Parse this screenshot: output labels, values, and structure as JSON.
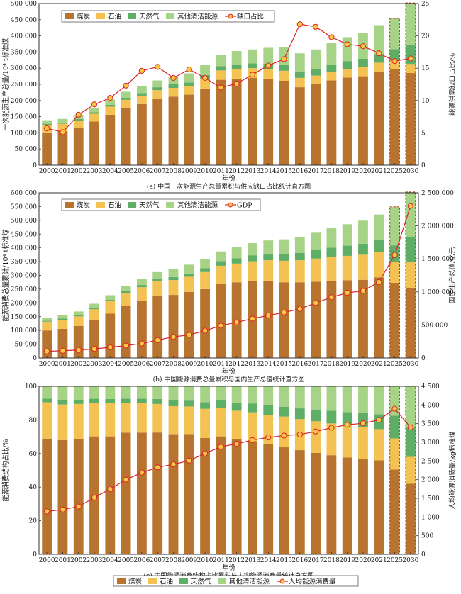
{
  "years": [
    "2000",
    "2001",
    "2002",
    "2003",
    "2004",
    "2005",
    "2006",
    "2007",
    "2008",
    "2009",
    "2010",
    "2011",
    "2012",
    "2013",
    "2014",
    "2015",
    "2016",
    "2017",
    "2018",
    "2019",
    "2020",
    "2021",
    "2025",
    "2030"
  ],
  "colors": {
    "coal": "#b8732f",
    "oil": "#f4c253",
    "gas": "#5fae66",
    "clean": "#a7d387",
    "line": "#d9242b",
    "marker": "#f6c842",
    "proj_border": "#c0392b"
  },
  "chart_data": [
    {
      "type": "bar",
      "title": "(a) 中国一次能源生产总量累积与供应缺口占比统计直方图",
      "xlabel": "年份",
      "ylabel": "一次能源生产总量/10⁴ t标准煤",
      "y2label": "能源供需缺口占比/%",
      "ylim": [
        0,
        500000
      ],
      "y2lim": [
        0,
        25
      ],
      "yticks": [
        "0",
        "50 000",
        "100 000",
        "150 000",
        "200 000",
        "250 000",
        "300 000",
        "350 000",
        "400 000",
        "450 000",
        "500 000"
      ],
      "y2ticks": [
        "0",
        "5",
        "10",
        "15",
        "20",
        "25"
      ],
      "legend": [
        "煤炭",
        "石油",
        "天然气",
        "其他清洁能源",
        "缺口占比"
      ],
      "legend_position": "top-left",
      "series": [
        {
          "name": "煤炭",
          "values": [
            101000,
            105000,
            114000,
            135000,
            156000,
            176000,
            189000,
            205000,
            212000,
            218000,
            237000,
            264000,
            267000,
            270000,
            267000,
            261000,
            241000,
            250000,
            262000,
            271000,
            275000,
            289000,
            298000,
            285000
          ]
        },
        {
          "name": "石油",
          "values": [
            23000,
            23000,
            24000,
            24000,
            25000,
            26000,
            26000,
            27000,
            27000,
            27000,
            29000,
            29000,
            30000,
            30000,
            30000,
            31000,
            29000,
            27000,
            27000,
            27000,
            28000,
            28000,
            28000,
            28000
          ]
        },
        {
          "name": "天然气",
          "values": [
            4000,
            4000,
            5000,
            5000,
            6000,
            7000,
            8000,
            9000,
            11000,
            11000,
            13000,
            13000,
            14000,
            15000,
            17000,
            18000,
            18000,
            20000,
            21000,
            24000,
            26000,
            27000,
            33000,
            60000
          ]
        },
        {
          "name": "其他清洁能源",
          "values": [
            11000,
            11000,
            12000,
            14000,
            16000,
            18000,
            21000,
            21000,
            24000,
            28000,
            32000,
            36000,
            42000,
            43000,
            49000,
            54000,
            58000,
            61000,
            67000,
            74000,
            79000,
            89000,
            95000,
            129000
          ]
        },
        {
          "name": "缺口占比",
          "values": [
            5.7,
            5.1,
            7.8,
            9.4,
            10.4,
            12.3,
            14.6,
            15.2,
            13.5,
            14.8,
            13.5,
            12.0,
            12.6,
            14.0,
            15.4,
            16.4,
            21.8,
            21.4,
            19.8,
            18.7,
            18.4,
            17.3,
            16.1,
            16.5
          ]
        }
      ]
    },
    {
      "type": "bar",
      "title": "(b) 中国能源消费总量累积与国内生产总值统计直方图",
      "xlabel": "年份",
      "ylabel": "能源消费总量累计/10⁴ t标准煤",
      "y2label": "国民生产总值/亿元",
      "ylim": [
        0,
        600000
      ],
      "y2lim": [
        0,
        2500000
      ],
      "yticks": [
        "0",
        "50 000",
        "100 000",
        "150 000",
        "200 000",
        "250 000",
        "300 000",
        "350 000",
        "400 000",
        "450 000",
        "500 000",
        "550 000",
        "600 000"
      ],
      "y2ticks": [
        "0",
        "500 000",
        "1 000 000",
        "1 500 000",
        "2 000 000",
        "2 500 000"
      ],
      "legend": [
        "煤炭",
        "石油",
        "天然气",
        "其他清洁能源",
        "GDP"
      ],
      "legend_position": "top-left",
      "series": [
        {
          "name": "煤炭",
          "values": [
            100000,
            106000,
            116000,
            138000,
            161000,
            189000,
            207000,
            225000,
            229000,
            240000,
            250000,
            271000,
            275000,
            280000,
            281000,
            275000,
            275000,
            277000,
            279000,
            282000,
            284000,
            293000,
            273000,
            253000
          ]
        },
        {
          "name": "石油",
          "values": [
            32000,
            33000,
            35000,
            39000,
            45000,
            47000,
            50000,
            53000,
            54000,
            55000,
            62000,
            64000,
            68000,
            71000,
            74000,
            78000,
            80000,
            84000,
            87000,
            89000,
            91000,
            92000,
            76000,
            95000
          ]
        },
        {
          "name": "天然气",
          "values": [
            3000,
            4000,
            4000,
            5000,
            5000,
            7000,
            8000,
            10000,
            11000,
            12000,
            14000,
            17000,
            19000,
            22000,
            24000,
            25000,
            27000,
            31000,
            35000,
            37000,
            40000,
            44000,
            60000,
            90000
          ]
        },
        {
          "name": "其他清洁能源",
          "values": [
            11000,
            12000,
            14000,
            15000,
            17000,
            19000,
            22000,
            24000,
            28000,
            32000,
            33000,
            35000,
            40000,
            44000,
            48000,
            53000,
            58000,
            63000,
            70000,
            78000,
            84000,
            92000,
            140000,
            165000
          ]
        },
        {
          "name": "GDP",
          "values": [
            100000,
            110000,
            121000,
            137000,
            162000,
            187000,
            219000,
            270000,
            320000,
            349000,
            413000,
            489000,
            540000,
            595000,
            644000,
            689000,
            744000,
            832000,
            919000,
            986000,
            1016000,
            1149000,
            1560000,
            2300000
          ]
        }
      ]
    },
    {
      "type": "bar",
      "title": "(c) 中国能源消费结构占比累积与人均能源消费量统计直方图",
      "xlabel": "年份",
      "ylabel": "能源消费结构占比/%",
      "y2label": "人均能源消费量/kg标准煤",
      "ylim": [
        0,
        100
      ],
      "y2lim": [
        0,
        4500
      ],
      "yticks": [
        "0",
        "20",
        "40",
        "60",
        "80",
        "100"
      ],
      "y2ticks": [
        "0",
        "500",
        "1 000",
        "1 500",
        "2 000",
        "2 500",
        "3 000",
        "3 500",
        "4 000",
        "4 500"
      ],
      "legend": [
        "煤炭",
        "石油",
        "天然气",
        "其他清洁能源",
        "人均能源消费量"
      ],
      "legend_position": "bottom",
      "series": [
        {
          "name": "煤炭",
          "values": [
            68.5,
            68.0,
            68.5,
            70.2,
            70.2,
            72.4,
            72.4,
            72.5,
            71.5,
            71.6,
            69.2,
            70.2,
            68.5,
            67.4,
            65.6,
            63.7,
            62.0,
            60.4,
            59.0,
            57.7,
            56.9,
            55.9,
            50.5,
            42.0
          ]
        },
        {
          "name": "石油",
          "values": [
            22.0,
            21.2,
            21.0,
            20.1,
            19.9,
            17.8,
            17.5,
            17.0,
            16.7,
            16.4,
            17.4,
            16.8,
            17.0,
            17.1,
            17.4,
            18.3,
            18.5,
            18.8,
            18.9,
            19.0,
            18.8,
            18.6,
            18.5,
            16.0
          ]
        },
        {
          "name": "天然气",
          "values": [
            2.2,
            2.4,
            2.3,
            2.3,
            2.3,
            2.4,
            2.7,
            3.0,
            3.4,
            3.5,
            4.0,
            4.6,
            4.8,
            5.3,
            5.7,
            5.9,
            6.4,
            7.0,
            7.6,
            8.0,
            8.4,
            8.9,
            13.5,
            17.5
          ]
        },
        {
          "name": "其他清洁能源",
          "values": [
            7.3,
            8.4,
            8.2,
            7.4,
            7.6,
            7.4,
            7.4,
            7.5,
            8.4,
            8.5,
            9.4,
            8.4,
            9.7,
            10.2,
            11.3,
            12.1,
            13.1,
            13.8,
            14.5,
            15.3,
            15.9,
            16.6,
            17.5,
            24.5
          ]
        },
        {
          "name": "人均能源消费量",
          "values": [
            1150,
            1200,
            1280,
            1520,
            1750,
            2000,
            2190,
            2330,
            2410,
            2510,
            2700,
            2880,
            2960,
            3060,
            3130,
            3180,
            3210,
            3290,
            3390,
            3470,
            3510,
            3600,
            3900,
            3400
          ]
        }
      ]
    }
  ]
}
